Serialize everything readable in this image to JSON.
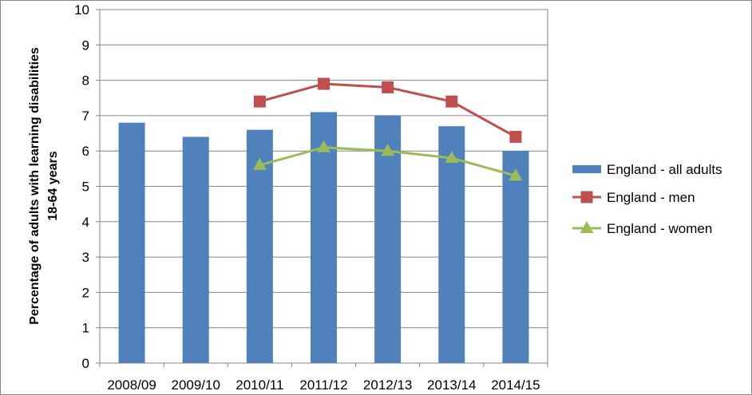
{
  "chart_data": {
    "type": "bar",
    "title": "",
    "xlabel": "",
    "ylabel_line1": "Percentage of adults with learning disabilities",
    "ylabel_line2": "18-64 years",
    "ylim": [
      0,
      10
    ],
    "yticks": [
      "0",
      "1",
      "2",
      "3",
      "4",
      "5",
      "6",
      "7",
      "8",
      "9",
      "10"
    ],
    "grid": true,
    "legend_position": "right",
    "categories": [
      "2008/09",
      "2009/10",
      "2010/11",
      "2011/12",
      "2012/13",
      "2013/14",
      "2014/15"
    ],
    "series": [
      {
        "name": "England - all adults",
        "kind": "bar",
        "color": "#4F81BD",
        "values": [
          6.8,
          6.4,
          6.6,
          7.1,
          7.0,
          6.7,
          6.0
        ]
      },
      {
        "name": "England - men",
        "kind": "line",
        "marker": "square",
        "color": "#C0504D",
        "values": [
          null,
          null,
          7.4,
          7.9,
          7.8,
          7.4,
          6.4
        ]
      },
      {
        "name": "England - women",
        "kind": "line",
        "marker": "triangle",
        "color": "#9BBB59",
        "values": [
          null,
          null,
          5.6,
          6.1,
          6.0,
          5.8,
          5.3
        ]
      }
    ]
  }
}
